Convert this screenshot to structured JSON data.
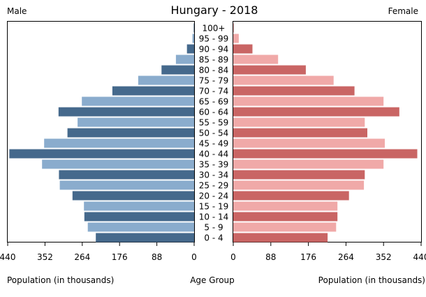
{
  "chart_data": {
    "type": "bar",
    "subtype": "population-pyramid",
    "title": "Hungary - 2018",
    "left_label": "Male",
    "right_label": "Female",
    "xlabel_left": "Population (in thousands)",
    "xlabel_center": "Age Group",
    "xlabel_right": "Population (in thousands)",
    "xlim": [
      0,
      440
    ],
    "ticks": [
      0,
      88,
      176,
      264,
      352,
      440
    ],
    "tick_labels_left": [
      "440",
      "352",
      "264",
      "176",
      "88",
      "0"
    ],
    "tick_labels_right": [
      "0",
      "88",
      "176",
      "264",
      "352",
      "440"
    ],
    "categories": [
      "0 - 4",
      "5 - 9",
      "10 - 14",
      "15 - 19",
      "20 - 24",
      "25 - 29",
      "30 - 34",
      "35 - 39",
      "40 - 44",
      "45 - 49",
      "50 - 54",
      "55 - 59",
      "60 - 64",
      "65 - 69",
      "70 - 74",
      "75 - 79",
      "80 - 84",
      "85 - 89",
      "90 - 94",
      "95 - 99",
      "100+"
    ],
    "series": [
      {
        "name": "Male",
        "values": [
          232,
          251,
          259,
          260,
          287,
          317,
          319,
          359,
          436,
          354,
          299,
          275,
          320,
          265,
          193,
          132,
          77,
          43,
          17,
          4,
          1
        ]
      },
      {
        "name": "Female",
        "values": [
          221,
          241,
          244,
          244,
          271,
          306,
          308,
          352,
          431,
          355,
          314,
          308,
          389,
          352,
          284,
          235,
          170,
          105,
          45,
          13,
          1
        ]
      }
    ],
    "colors": {
      "male_dark": "#45698c",
      "male_light": "#8aaccd",
      "female_dark": "#c96564",
      "female_light": "#f0a9a8"
    },
    "grid": false,
    "legend": "none"
  }
}
